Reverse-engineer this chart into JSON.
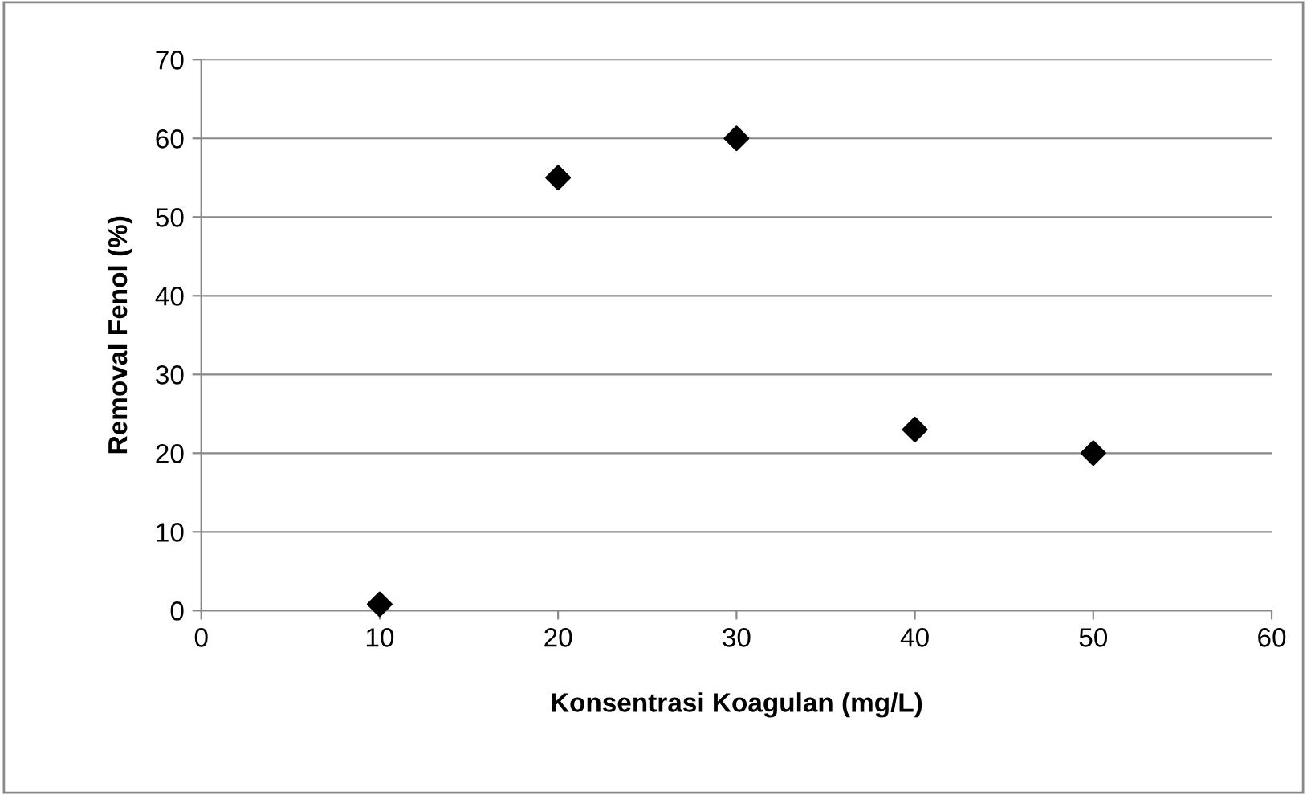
{
  "chart_data": {
    "type": "scatter",
    "xlabel": "Konsentrasi Koagulan (mg/L)",
    "ylabel": "Removal Fenol (%)",
    "x": [
      10,
      20,
      30,
      40,
      50
    ],
    "values": [
      0.8,
      55,
      60,
      23,
      20
    ],
    "color": "#000000",
    "marker": "diamond",
    "xlim": [
      0,
      60
    ],
    "xticks": [
      0,
      10,
      20,
      30,
      40,
      50,
      60
    ],
    "ylim": [
      0,
      70
    ],
    "yticks": [
      0,
      10,
      20,
      30,
      40,
      50,
      60,
      70
    ],
    "grid": "y",
    "legend": false
  }
}
